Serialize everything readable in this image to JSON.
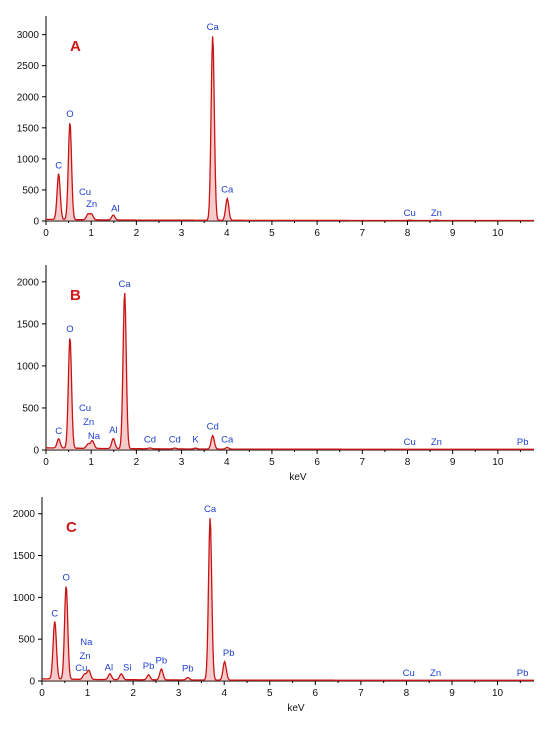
{
  "colors": {
    "spectrum": "#c81414",
    "fill": "#e46a6a",
    "label": "#1f3fd0",
    "letter": "#d01818",
    "axis": "#000000"
  },
  "chart_data": [
    {
      "type": "line",
      "panel": "A",
      "xlabel": "",
      "ylabel": "",
      "xlim": [
        0,
        10.8
      ],
      "ylim": [
        0,
        3300
      ],
      "xticks": [
        "0",
        "1",
        "2",
        "3",
        "4",
        "5",
        "6",
        "7",
        "8",
        "9",
        "10"
      ],
      "yticks": [
        "0",
        "500",
        "1000",
        "1500",
        "2000",
        "2500",
        "3000"
      ],
      "peaks": [
        {
          "element": "C",
          "x": 0.28,
          "y": 750
        },
        {
          "element": "O",
          "x": 0.53,
          "y": 1580
        },
        {
          "element": "Cu",
          "x": 0.93,
          "y": 100
        },
        {
          "element": "Zn",
          "x": 1.01,
          "y": 100
        },
        {
          "element": "Al",
          "x": 1.49,
          "y": 90
        },
        {
          "element": "Ca",
          "x": 3.69,
          "y": 2980
        },
        {
          "element": "Ca",
          "x": 4.01,
          "y": 360
        },
        {
          "element": "Cu",
          "x": 8.05,
          "y": 15
        },
        {
          "element": "Zn",
          "x": 8.64,
          "y": 15
        }
      ]
    },
    {
      "type": "line",
      "panel": "B",
      "xlabel": "keV",
      "ylabel": "",
      "xlim": [
        0,
        10.8
      ],
      "ylim": [
        0,
        2200
      ],
      "xticks": [
        "0",
        "1",
        "2",
        "3",
        "4",
        "5",
        "6",
        "7",
        "8",
        "9",
        "10"
      ],
      "yticks": [
        "0",
        "500",
        "1000",
        "1500",
        "2000"
      ],
      "peaks": [
        {
          "element": "C",
          "x": 0.28,
          "y": 120
        },
        {
          "element": "O",
          "x": 0.53,
          "y": 1330
        },
        {
          "element": "Cu",
          "x": 0.93,
          "y": 60
        },
        {
          "element": "Zn",
          "x": 1.01,
          "y": 60
        },
        {
          "element": "Na",
          "x": 1.04,
          "y": 60
        },
        {
          "element": "Al",
          "x": 1.49,
          "y": 130
        },
        {
          "element": "Ca",
          "x": 1.74,
          "y": 1870
        },
        {
          "element": "Cd",
          "x": 2.3,
          "y": 20
        },
        {
          "element": "Cd",
          "x": 2.85,
          "y": 20
        },
        {
          "element": "K",
          "x": 3.31,
          "y": 20
        },
        {
          "element": "Cd",
          "x": 3.69,
          "y": 170
        },
        {
          "element": "Ca",
          "x": 4.01,
          "y": 30
        },
        {
          "element": "Cu",
          "x": 8.05,
          "y": 10
        },
        {
          "element": "Zn",
          "x": 8.64,
          "y": 10
        },
        {
          "element": "Pb",
          "x": 10.55,
          "y": 10
        }
      ]
    },
    {
      "type": "line",
      "panel": "C",
      "xlabel": "keV",
      "ylabel": "",
      "xlim": [
        0,
        10.8
      ],
      "ylim": [
        0,
        2200
      ],
      "xticks": [
        "0",
        "1",
        "2",
        "3",
        "4",
        "5",
        "6",
        "7",
        "8",
        "9",
        "10"
      ],
      "yticks": [
        "0",
        "500",
        "1000",
        "1500",
        "2000"
      ],
      "peaks": [
        {
          "element": "C",
          "x": 0.28,
          "y": 700
        },
        {
          "element": "O",
          "x": 0.53,
          "y": 1130
        },
        {
          "element": "Na",
          "x": 1.04,
          "y": 70
        },
        {
          "element": "Zn",
          "x": 1.01,
          "y": 70
        },
        {
          "element": "Cu",
          "x": 0.93,
          "y": 70
        },
        {
          "element": "Al",
          "x": 1.49,
          "y": 80
        },
        {
          "element": "Si",
          "x": 1.74,
          "y": 80
        },
        {
          "element": "Pb",
          "x": 2.34,
          "y": 70
        },
        {
          "element": "Pb",
          "x": 2.62,
          "y": 140
        },
        {
          "element": "Pb",
          "x": 3.2,
          "y": 40
        },
        {
          "element": "Ca",
          "x": 3.69,
          "y": 1950
        },
        {
          "element": "Pb",
          "x": 4.01,
          "y": 230
        },
        {
          "element": "Cu",
          "x": 8.05,
          "y": 10
        },
        {
          "element": "Zn",
          "x": 8.64,
          "y": 10
        },
        {
          "element": "Pb",
          "x": 10.55,
          "y": 10
        }
      ]
    }
  ]
}
